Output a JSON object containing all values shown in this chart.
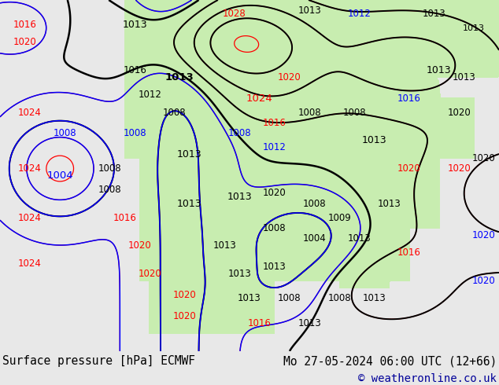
{
  "title_left": "Surface pressure [hPa] ECMWF",
  "title_right": "Mo 27-05-2024 06:00 UTC (12+66)",
  "copyright": "© weatheronline.co.uk",
  "bg_color": "#e8e8e8",
  "land_color": "#c8edb0",
  "ocean_color": "#e0e0e8",
  "footer_bg": "#d8d8d8",
  "title_fontsize": 10.5,
  "copyright_fontsize": 10,
  "copyright_color": "#000099"
}
